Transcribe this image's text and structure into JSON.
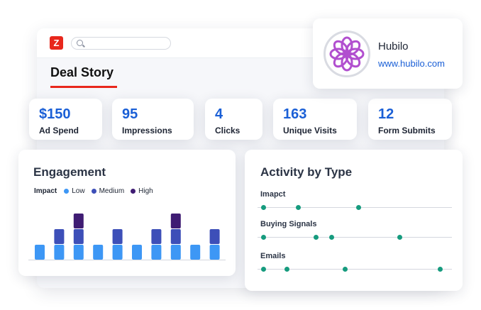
{
  "app": {
    "logo_letter": "Z"
  },
  "search": {
    "value": "",
    "placeholder": ""
  },
  "deal": {
    "title": "Deal Story"
  },
  "stats": [
    {
      "value": "$150",
      "label": "Ad Spend"
    },
    {
      "value": "95",
      "label": "Impressions"
    },
    {
      "value": "4",
      "label": "Clicks"
    },
    {
      "value": "163",
      "label": "Unique Visits"
    },
    {
      "value": "12",
      "label": "Form Submits"
    }
  ],
  "company": {
    "name": "Hubilo",
    "url": "www.hubilo.com",
    "logo_icon": "flower-logo-icon",
    "logo_color": "#b14fcf"
  },
  "engagement": {
    "title": "Engagement",
    "legend": {
      "label": "Impact",
      "items": [
        {
          "label": "Low",
          "color": "#3d97f5"
        },
        {
          "label": "Medium",
          "color": "#3d4fb8"
        },
        {
          "label": "High",
          "color": "#3f1c73"
        }
      ]
    },
    "bars": [
      [
        1,
        0,
        0
      ],
      [
        1,
        1,
        0
      ],
      [
        1,
        1,
        1
      ],
      [
        1,
        0,
        0
      ],
      [
        1,
        1,
        0
      ],
      [
        1,
        0,
        0
      ],
      [
        1,
        1,
        0
      ],
      [
        1,
        1,
        1
      ],
      [
        1,
        0,
        0
      ],
      [
        1,
        1,
        0
      ]
    ]
  },
  "activity": {
    "title": "Activity by Type",
    "rows": [
      {
        "label": "Imapct",
        "points": [
          0.03,
          0.21,
          0.52
        ]
      },
      {
        "label": "Buying Signals",
        "points": [
          0.03,
          0.3,
          0.38,
          0.73
        ]
      },
      {
        "label": "Emails",
        "points": [
          0.03,
          0.15,
          0.45,
          0.94
        ]
      }
    ],
    "dot_color": "#169b7e"
  }
}
